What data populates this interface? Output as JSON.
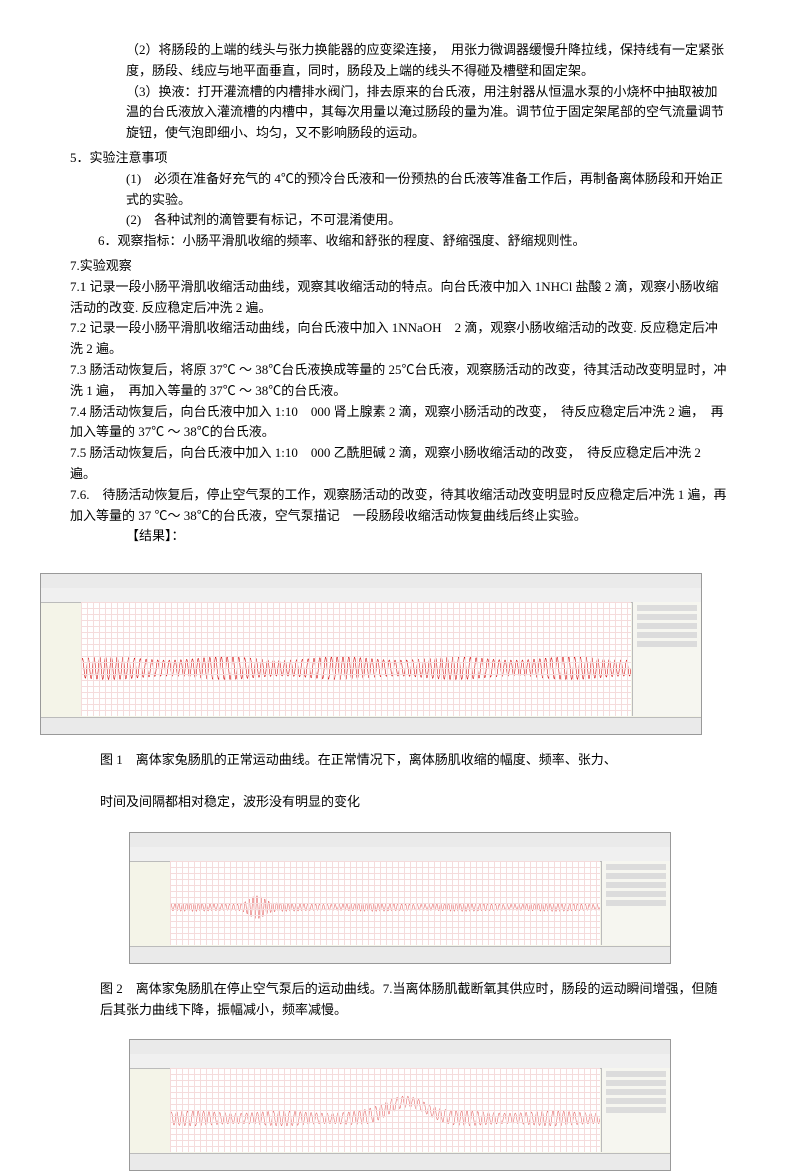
{
  "steps": {
    "s2": "（2）将肠段的上端的线头与张力换能器的应变梁连接，　用张力微调器缓慢升降拉线，保持线有一定紧张度，肠段、线应与地平面垂直，同时，肠段及上端的线头不得碰及槽壁和固定架。",
    "s3": "（3）换液：打开灌流槽的内槽排水阀门，排去原来的台氏液，用注射器从恒温水泵的小烧杯中抽取被加温的台氏液放入灌流槽的内槽中，其每次用量以淹过肠段的量为准。调节位于固定架尾部的空气流量调节旋钮，使气泡即细小、均匀，又不影响肠段的运动。"
  },
  "sec5_title": "5．实验注意事项",
  "sec5_1": "(1)　必须在准备好充气的 4℃的预冷台氏液和一份预热的台氏液等准备工作后，再制备离体肠段和开始正式的实验。",
  "sec5_2": "(2)　各种试剂的滴管要有标记，不可混淆使用。",
  "sec6": "6．观察指标：小肠平滑肌收缩的频率、收缩和舒张的程度、舒缩强度、舒缩规则性。",
  "sec7_title": "7.实验观察",
  "sec7_1": "7.1 记录一段小肠平滑肌收缩活动曲线，观察其收缩活动的特点。向台氏液中加入 1NHCl 盐酸 2 滴，观察小肠收缩活动的改变. 反应稳定后冲洗 2 遍。",
  "sec7_2": "7.2 记录一段小肠平滑肌收缩活动曲线，向台氏液中加入 1NNaOH　2 滴，观察小肠收缩活动的改变. 反应稳定后冲洗 2 遍。",
  "sec7_3": "7.3 肠活动恢复后，将原 37℃ ～ 38℃台氏液换成等量的 25℃台氏液，观察肠活动的改变，待其活动改变明显时，冲洗 1 遍，　再加入等量的 37℃ ～ 38℃的台氏液。",
  "sec7_4": "7.4 肠活动恢复后，向台氏液中加入 1:10　000 肾上腺素 2 滴，观察小肠活动的改变，　待反应稳定后冲洗 2 遍，　再加入等量的 37℃ ～ 38℃的台氏液。",
  "sec7_5": "7.5 肠活动恢复后，向台氏液中加入 1:10　000 乙酰胆碱 2 滴，观察小肠收缩活动的改变，　待反应稳定后冲洗 2 遍。",
  "sec7_6": "7.6.　待肠活动恢复后，停止空气泵的工作，观察肠活动的改变，待其收缩活动改变明显时反应稳定后冲洗 1 遍，再加入等量的 37 ℃～ 38℃的台氏液，空气泵描记　一段肠段收缩活动恢复曲线后终止实验。",
  "results_label": "【结果】：",
  "fig1_caption_a": "图 1　离体家兔肠肌的正常运动曲线。在正常情况下，离体肠肌收缩的幅度、频率、张力、",
  "fig1_caption_b": "时间及间隔都相对稳定，波形没有明显的变化",
  "fig2_caption": "图 2　离体家兔肠肌在停止空气泵后的运动曲线。7.当离体肠肌截断氧其供应时，肠段的运动瞬间增强，但随后其张力曲线下降，振幅减小，频率减慢。",
  "chart1": {
    "type": "line",
    "wave_color": "#d40000",
    "grid_color": "#f5dcdc",
    "background_color": "#ffffff",
    "panel_bg": "#f4f4e8",
    "baseline_y": 0.58,
    "amplitude": 0.1,
    "cycles": 95,
    "line_width": 1
  },
  "chart2": {
    "type": "line",
    "wave_color": "#d40000",
    "grid_color": "#f5dcdc",
    "background_color": "#ffffff",
    "panel_bg": "#f4f4e8",
    "baseline_y": 0.55,
    "amplitude": 0.05,
    "cycles": 110,
    "burst_pos": 0.2,
    "burst_amp": 0.12,
    "line_width": 1
  },
  "chart3": {
    "type": "line",
    "wave_color": "#d40000",
    "grid_color": "#f5dcdc",
    "background_color": "#ffffff",
    "panel_bg": "#f4f4e8",
    "baseline_y": 0.6,
    "amplitude": 0.09,
    "cycles": 80,
    "hump_pos": 0.55,
    "hump_height": 0.2,
    "line_width": 1
  }
}
